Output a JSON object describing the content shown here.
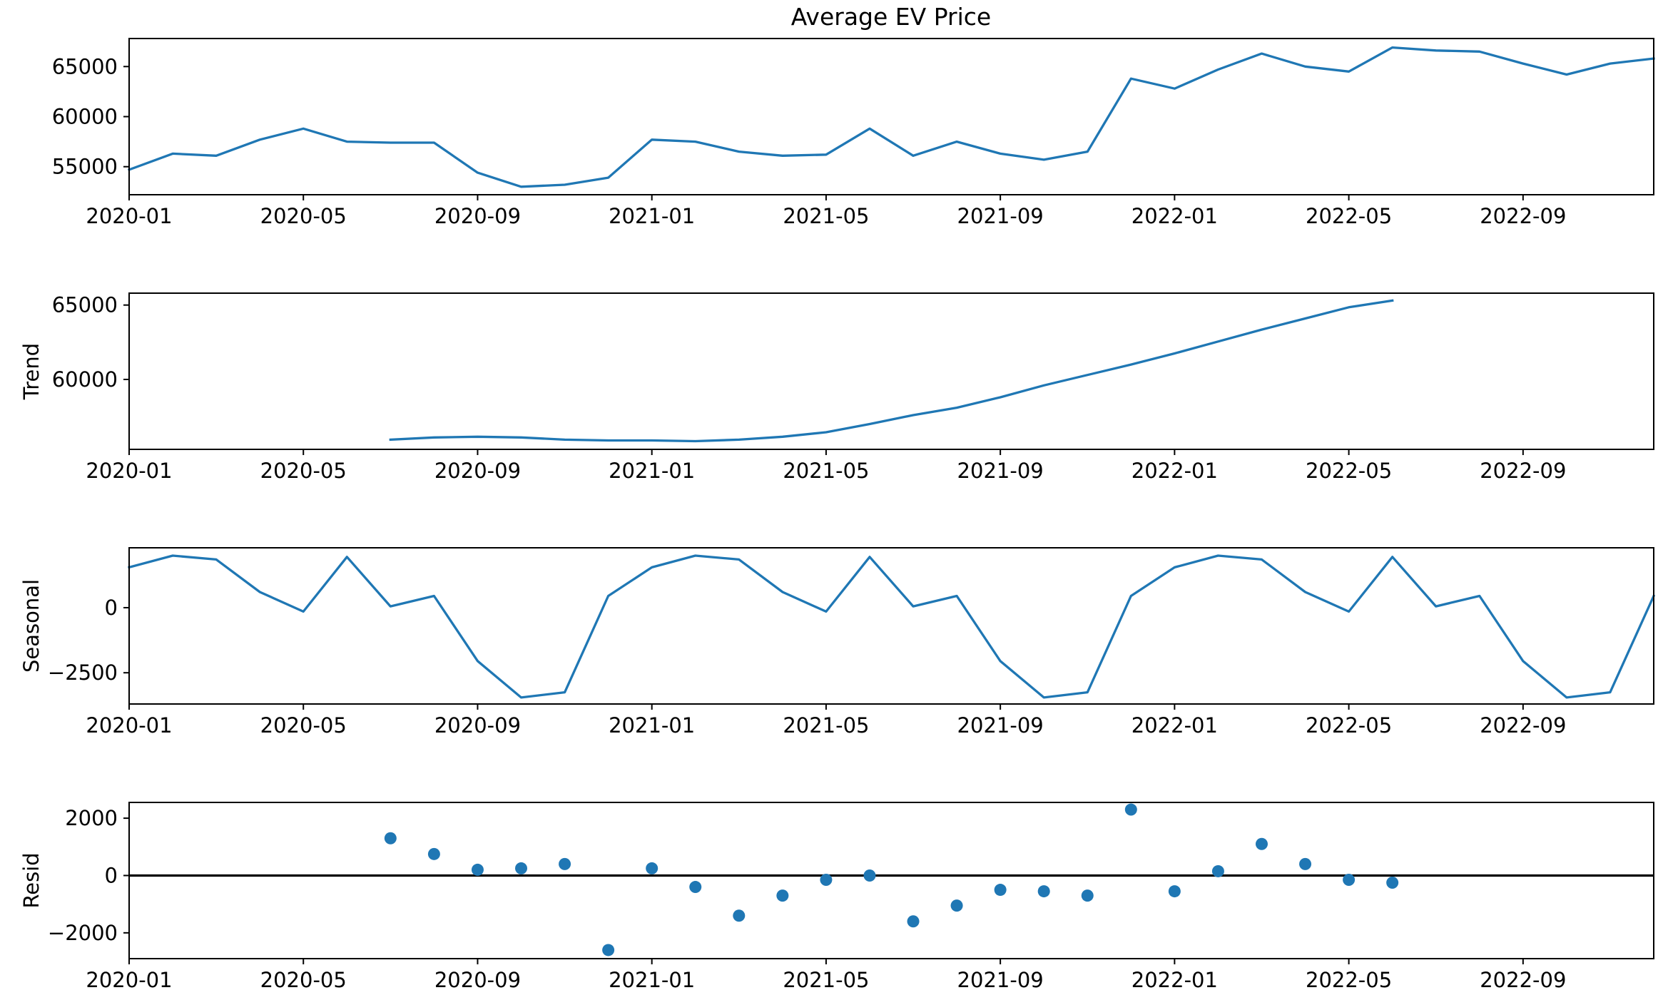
{
  "chart_data": {
    "type": "line",
    "title": "Average EV Price",
    "x_dates": [
      "2020-01",
      "2020-02",
      "2020-03",
      "2020-04",
      "2020-05",
      "2020-06",
      "2020-07",
      "2020-08",
      "2020-09",
      "2020-10",
      "2020-11",
      "2020-12",
      "2021-01",
      "2021-02",
      "2021-03",
      "2021-04",
      "2021-05",
      "2021-06",
      "2021-07",
      "2021-08",
      "2021-09",
      "2021-10",
      "2021-11",
      "2021-12",
      "2022-01",
      "2022-02",
      "2022-03",
      "2022-04",
      "2022-05",
      "2022-06",
      "2022-07",
      "2022-08",
      "2022-09",
      "2022-10",
      "2022-11",
      "2022-12"
    ],
    "x_tick_labels": [
      "2020-01",
      "2020-05",
      "2020-09",
      "2021-01",
      "2021-05",
      "2021-09",
      "2022-01",
      "2022-05",
      "2022-09"
    ],
    "accent_color": "#1f77b4",
    "panels": [
      {
        "name": "observed",
        "ylabel": "",
        "kind": "line",
        "ylim": [
          52200,
          67800
        ],
        "y_ticks": [
          55000,
          60000,
          65000
        ],
        "y_tick_labels": [
          "55000",
          "60000",
          "65000"
        ],
        "values": [
          54700,
          56300,
          56100,
          57700,
          58800,
          57500,
          57400,
          57400,
          54400,
          53000,
          53200,
          53900,
          57700,
          57500,
          56500,
          56100,
          56200,
          58800,
          56100,
          57500,
          56300,
          55700,
          56500,
          63800,
          62800,
          64700,
          66300,
          65000,
          64500,
          66900,
          66600,
          66500,
          65300,
          64200,
          65300,
          65800
        ]
      },
      {
        "name": "trend",
        "ylabel": "Trend",
        "kind": "line",
        "ylim": [
          55300,
          65800
        ],
        "y_ticks": [
          60000,
          65000
        ],
        "y_tick_labels": [
          "60000",
          "65000"
        ],
        "values": [
          null,
          null,
          null,
          null,
          null,
          null,
          55950,
          56100,
          56150,
          56100,
          55950,
          55900,
          55900,
          55850,
          55950,
          56150,
          56450,
          57000,
          57600,
          58100,
          58800,
          59600,
          60300,
          61000,
          61750,
          62550,
          63350,
          64100,
          64850,
          65300,
          null,
          null,
          null,
          null,
          null,
          null
        ]
      },
      {
        "name": "seasonal",
        "ylabel": "Seasonal",
        "kind": "line",
        "ylim": [
          -3700,
          2300
        ],
        "y_ticks": [
          -2500,
          0
        ],
        "y_tick_labels": [
          "−2500",
          "0"
        ],
        "values": [
          1550,
          2000,
          1850,
          600,
          -150,
          1950,
          50,
          450,
          -2050,
          -3450,
          -3250,
          450,
          1550,
          2000,
          1850,
          600,
          -150,
          1950,
          50,
          450,
          -2050,
          -3450,
          -3250,
          450,
          1550,
          2000,
          1850,
          600,
          -150,
          1950,
          50,
          450,
          -2050,
          -3450,
          -3250,
          450
        ]
      },
      {
        "name": "resid",
        "ylabel": "Resid",
        "kind": "scatter",
        "ylim": [
          -2900,
          2550
        ],
        "y_ticks": [
          -2000,
          0,
          2000
        ],
        "y_tick_labels": [
          "−2000",
          "0",
          "2000"
        ],
        "zero_line": true,
        "values": [
          null,
          null,
          null,
          null,
          null,
          null,
          1300,
          750,
          200,
          250,
          400,
          -2600,
          250,
          -400,
          -1400,
          -700,
          -150,
          0,
          -1600,
          -1050,
          -500,
          -550,
          -700,
          2300,
          -550,
          150,
          1100,
          400,
          -150,
          -250,
          null,
          null,
          null,
          null,
          null,
          null
        ]
      }
    ]
  }
}
